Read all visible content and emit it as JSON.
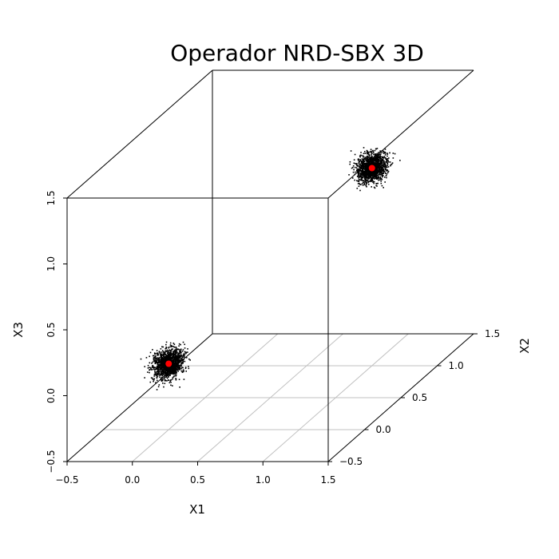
{
  "chart_data": {
    "type": "scatter",
    "title": "Operador NRD-SBX 3D",
    "xlabel": "X1",
    "ylabel": "X2",
    "zlabel": "X3",
    "xlim": [
      -0.5,
      1.5
    ],
    "ylim": [
      -0.5,
      1.5
    ],
    "zlim": [
      -0.5,
      1.5
    ],
    "x_ticks": [
      "-0.5",
      "0.0",
      "0.5",
      "1.0",
      "1.5"
    ],
    "y_ticks": [
      "-0.5",
      "0.0",
      "0.5",
      "1.0",
      "1.5"
    ],
    "z_ticks": [
      "-0.5",
      "0.0",
      "0.5",
      "1.0",
      "1.5"
    ],
    "grid": "x1-x2 base plane",
    "series": [
      {
        "marker_color": "#000000",
        "clusters": [
          {
            "center": [
              0,
              0,
              0
            ],
            "spread": 0.05
          },
          {
            "center": [
              1,
              1,
              1
            ],
            "spread": 0.05
          }
        ]
      },
      {
        "marker_color": "#ff0000",
        "points": [
          [
            0,
            0,
            0
          ],
          [
            1,
            1,
            1
          ]
        ]
      }
    ]
  }
}
